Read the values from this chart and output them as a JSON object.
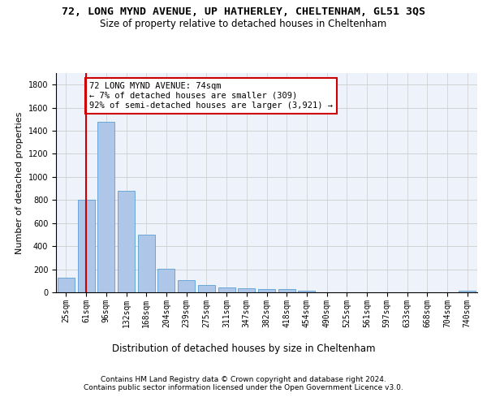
{
  "title": "72, LONG MYND AVENUE, UP HATHERLEY, CHELTENHAM, GL51 3QS",
  "subtitle": "Size of property relative to detached houses in Cheltenham",
  "xlabel": "Distribution of detached houses by size in Cheltenham",
  "ylabel": "Number of detached properties",
  "categories": [
    "25sqm",
    "61sqm",
    "96sqm",
    "132sqm",
    "168sqm",
    "204sqm",
    "239sqm",
    "275sqm",
    "311sqm",
    "347sqm",
    "382sqm",
    "418sqm",
    "454sqm",
    "490sqm",
    "525sqm",
    "561sqm",
    "597sqm",
    "633sqm",
    "668sqm",
    "704sqm",
    "740sqm"
  ],
  "values": [
    125,
    800,
    1480,
    880,
    500,
    205,
    105,
    65,
    40,
    35,
    30,
    25,
    15,
    0,
    0,
    0,
    0,
    0,
    0,
    0,
    15
  ],
  "bar_color": "#aec6e8",
  "bar_edge_color": "#5a9fd4",
  "vline_x": 1,
  "vline_color": "#cc0000",
  "annotation_text": "72 LONG MYND AVENUE: 74sqm\n← 7% of detached houses are smaller (309)\n92% of semi-detached houses are larger (3,921) →",
  "annotation_box_color": "#ffffff",
  "annotation_border_color": "#cc0000",
  "ylim": [
    0,
    1900
  ],
  "yticks": [
    0,
    200,
    400,
    600,
    800,
    1000,
    1200,
    1400,
    1600,
    1800
  ],
  "grid_color": "#cccccc",
  "background_color": "#eef2fb",
  "footer1": "Contains HM Land Registry data © Crown copyright and database right 2024.",
  "footer2": "Contains public sector information licensed under the Open Government Licence v3.0.",
  "title_fontsize": 9.5,
  "subtitle_fontsize": 8.5,
  "axis_label_fontsize": 8,
  "tick_fontsize": 7,
  "footer_fontsize": 6.5,
  "annotation_fontsize": 7.5
}
